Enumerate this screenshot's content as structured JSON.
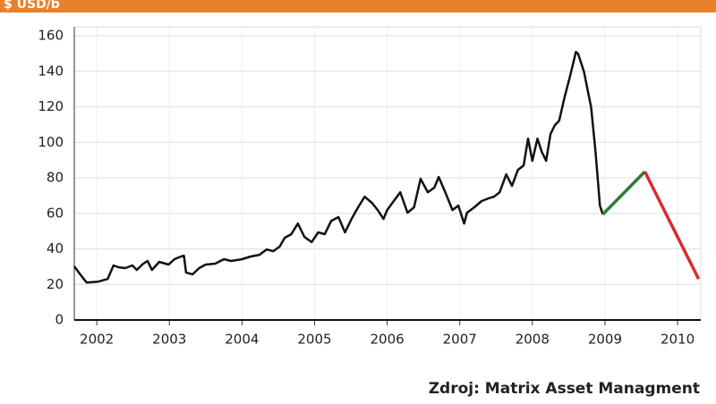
{
  "chart_data": {
    "type": "line",
    "title": "$ USD/b",
    "source": "Zdroj: Matrix Asset Managment",
    "xlim": [
      2001.69,
      2010.32
    ],
    "xticks": [
      2002,
      2003,
      2004,
      2005,
      2006,
      2007,
      2008,
      2009,
      2010
    ],
    "ylim": [
      0,
      160
    ],
    "yticks": [
      0,
      20,
      40,
      60,
      80,
      100,
      120,
      140,
      160
    ],
    "grid": true,
    "series": [
      {
        "color": "#111111",
        "x": [
          2001.69,
          2001.78,
          2001.86,
          2002.02,
          2002.15,
          2002.23,
          2002.3,
          2002.39,
          2002.49,
          2002.55,
          2002.64,
          2002.7,
          2002.76,
          2002.86,
          2002.99,
          2003.07,
          2003.16,
          2003.2,
          2003.23,
          2003.32,
          2003.41,
          2003.5,
          2003.63,
          2003.75,
          2003.85,
          2004.0,
          2004.12,
          2004.24,
          2004.34,
          2004.43,
          2004.52,
          2004.59,
          2004.68,
          2004.77,
          2004.86,
          2004.96,
          2005.05,
          2005.14,
          2005.23,
          2005.33,
          2005.42,
          2005.51,
          2005.6,
          2005.69,
          2005.79,
          2005.87,
          2005.95,
          2006.0,
          2006.09,
          2006.18,
          2006.28,
          2006.37,
          2006.46,
          2006.56,
          2006.65,
          2006.71,
          2006.8,
          2006.9,
          2006.98,
          2007.06,
          2007.1,
          2007.2,
          2007.3,
          2007.39,
          2007.47,
          2007.55,
          2007.64,
          2007.72,
          2007.8,
          2007.88,
          2007.94,
          2008.0,
          2008.07,
          2008.13,
          2008.19,
          2008.25,
          2008.31,
          2008.37,
          2008.44,
          2008.52,
          2008.6,
          2008.63,
          2008.71,
          2008.81,
          2008.87,
          2008.93,
          2008.97
        ],
        "values": [
          30.2,
          25.2,
          21.1,
          21.6,
          23.1,
          30.7,
          29.7,
          29.2,
          30.7,
          28.2,
          31.7,
          33.2,
          28.2,
          32.7,
          31.2,
          34.2,
          35.7,
          36.2,
          26.7,
          25.7,
          29.2,
          31.2,
          31.7,
          34.2,
          33.2,
          34.2,
          35.7,
          36.7,
          39.7,
          38.7,
          41.3,
          46.3,
          48.3,
          54.3,
          46.8,
          43.8,
          49.3,
          48.3,
          55.8,
          57.9,
          49.3,
          56.9,
          63.4,
          69.4,
          65.9,
          61.9,
          56.9,
          61.9,
          66.9,
          71.9,
          60.4,
          63.4,
          79.5,
          71.9,
          74.5,
          80.5,
          71.9,
          61.9,
          64.4,
          54.3,
          60.4,
          63.4,
          66.9,
          68.4,
          69.4,
          71.9,
          82.0,
          75.5,
          84.5,
          87.0,
          102.1,
          89.6,
          102.1,
          94.6,
          89.6,
          104.7,
          109.7,
          112.2,
          124.8,
          137.4,
          150.9,
          149.9,
          139.9,
          119.7,
          94.6,
          64.4,
          59.4
        ]
      },
      {
        "color": "#2e7d32",
        "x": [
          2008.97,
          2009.55
        ],
        "values": [
          59.4,
          83.5
        ]
      },
      {
        "color": "#d32f2f",
        "x": [
          2009.55,
          2010.29
        ],
        "values": [
          83.5,
          23.1
        ]
      }
    ]
  }
}
